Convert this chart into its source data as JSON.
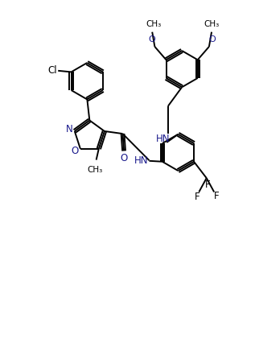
{
  "bg_color": "#ffffff",
  "line_color": "#000000",
  "heteroatom_color": "#1a1a8c",
  "line_width": 1.4,
  "figsize": [
    3.17,
    4.26
  ],
  "dpi": 100,
  "xlim": [
    0,
    10
  ],
  "ylim": [
    0,
    13.5
  ]
}
